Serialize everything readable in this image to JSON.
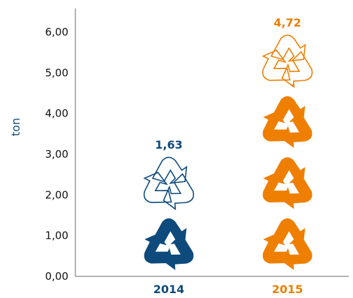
{
  "chart_data": {
    "type": "bar",
    "style": "pictogram",
    "icon": "recycle-icon",
    "unit_value": 1.5,
    "categories": [
      "2014",
      "2015"
    ],
    "values": [
      1.63,
      4.72
    ],
    "value_labels": [
      "1,63",
      "4,72"
    ],
    "colors": [
      "#0e4a7c",
      "#ee7f00"
    ],
    "ylabel": "ton",
    "ylim": [
      0,
      6.5
    ],
    "yticks": [
      0,
      1,
      2,
      3,
      4,
      5,
      6
    ],
    "ytick_labels": [
      "0,00",
      "1,00",
      "2,00",
      "3,00",
      "4,00",
      "5,00",
      "6,00"
    ],
    "ylabel_color": "#0e4a7c",
    "grid": false,
    "legend": "none"
  }
}
